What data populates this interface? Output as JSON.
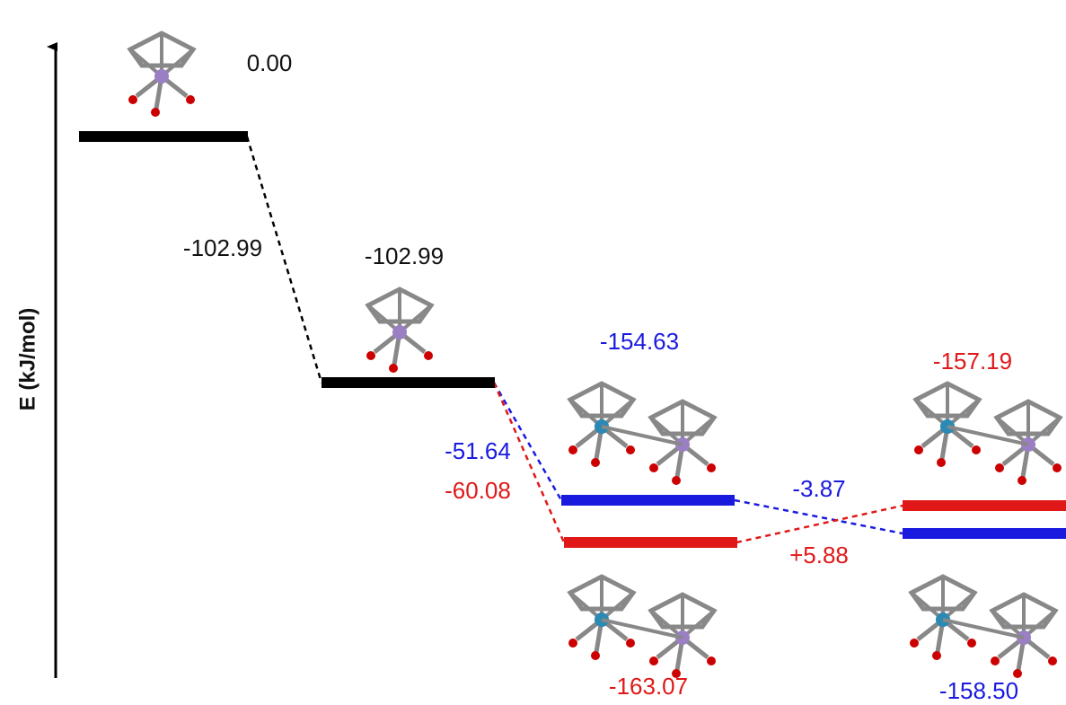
{
  "axis_label": "E (kJ/mol)",
  "levels": [
    {
      "label": "0.00"
    },
    {
      "label": "-102.99"
    },
    {
      "label": "-154.63"
    },
    {
      "label": "-163.07"
    },
    {
      "label": "-157.19"
    },
    {
      "label": "-158.50"
    }
  ],
  "steps": [
    {
      "label": "-102.99"
    },
    {
      "label": "-51.64"
    },
    {
      "label": "-60.08"
    },
    {
      "label": "-3.87"
    },
    {
      "label": "+5.88"
    }
  ]
}
